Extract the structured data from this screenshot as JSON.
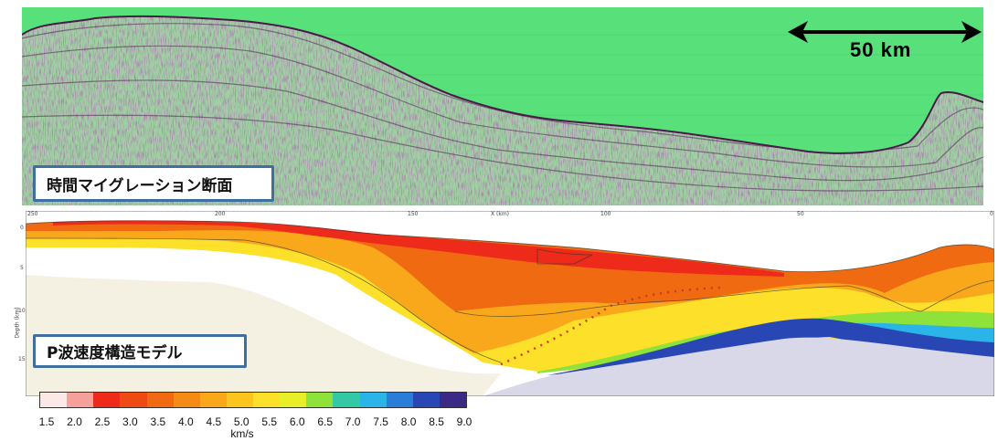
{
  "seismic_panel": {
    "label": "時間マイグレーション断面",
    "scale_label": "50 km",
    "water_color": "#58e07a"
  },
  "velocity_panel": {
    "label": "P波速度構造モデル",
    "x_axis_title": "X (km)",
    "x_ticks": [
      "250",
      "200",
      "150",
      "100",
      "50",
      "0"
    ],
    "y_axis_title": "Depth (km)",
    "y_ticks": [
      "0",
      "5",
      "10",
      "15"
    ]
  },
  "colorbar": {
    "unit": "km/s",
    "ticks": [
      "1.5",
      "2.0",
      "2.5",
      "3.0",
      "3.5",
      "4.0",
      "4.5",
      "5.0",
      "5.5",
      "6.0",
      "6.5",
      "7.0",
      "7.5",
      "8.0",
      "8.5",
      "9.0"
    ],
    "colors": [
      "#fce8e6",
      "#f5a09a",
      "#ee2a1a",
      "#ef4a14",
      "#f06a12",
      "#f58a14",
      "#f9a81c",
      "#fcc41e",
      "#fde02a",
      "#e8ee2a",
      "#8ee23a",
      "#34c8a4",
      "#2ab4e8",
      "#2a7ed8",
      "#2846b4",
      "#3a2a86"
    ]
  }
}
